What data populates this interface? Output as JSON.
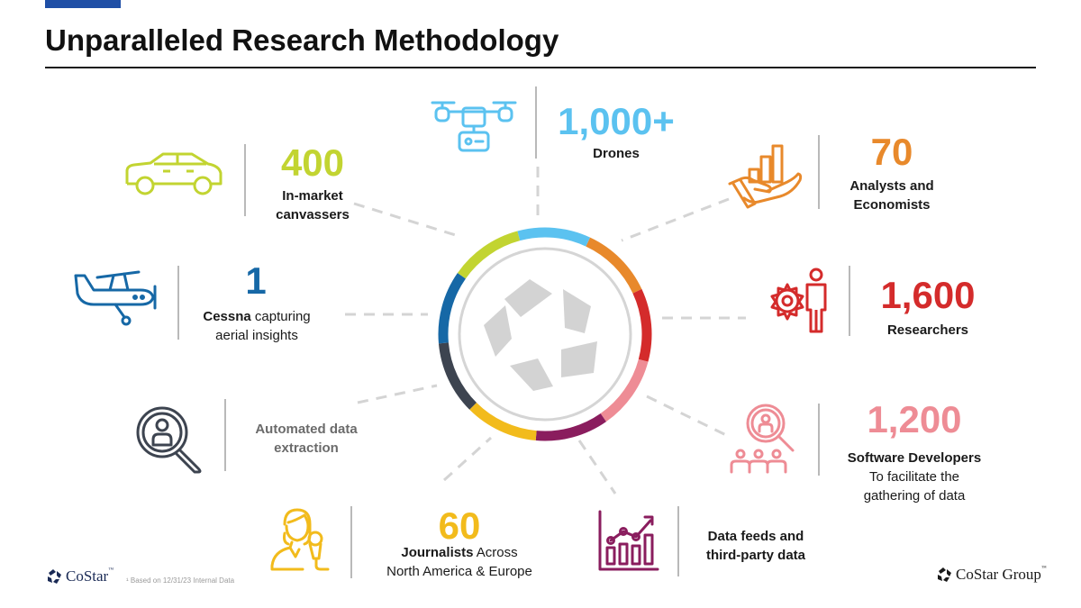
{
  "slide": {
    "title": "Unparalleled Research Methodology",
    "footnote": "¹ Based on 12/31/23 Internal Data",
    "logo_left": "CoStar",
    "logo_left_tm": "™",
    "logo_right": "CoStar Group",
    "logo_right_tm": "™"
  },
  "stats": {
    "drones": {
      "number": "1,000+",
      "label": "Drones",
      "icon": "drone-icon",
      "color": "#5bc2f0"
    },
    "canvassers": {
      "number": "400",
      "label_line1": "In-market",
      "label_line2": "canvassers",
      "icon": "car-icon",
      "color": "#c2d431"
    },
    "analysts": {
      "number": "70",
      "label_line1": "Analysts and",
      "label_line2": "Economists",
      "icon": "hand-chart-icon",
      "color": "#e8892b"
    },
    "cessna": {
      "number": "1",
      "label_bold": "Cessna",
      "label_rest": " capturing",
      "label_line2": "aerial insights",
      "icon": "airplane-icon",
      "color": "#1668a6"
    },
    "researchers": {
      "number": "1,600",
      "label": "Researchers",
      "icon": "person-gear-icon",
      "color": "#d42b2b"
    },
    "automated": {
      "label_line1": "Automated data",
      "label_line2": "extraction",
      "icon": "magnifier-person-icon",
      "color": "#3d4450"
    },
    "developers": {
      "number": "1,200",
      "label_line1": "Software Developers",
      "label_line2": "To facilitate the",
      "label_line3": "gathering of data",
      "icon": "team-search-icon",
      "color": "#ee8c95"
    },
    "journalists": {
      "number": "60",
      "label_bold": "Journalists",
      "label_rest": " Across",
      "label_line2": "North America & Europe",
      "icon": "journalist-icon",
      "color": "#f2bb1c"
    },
    "datafeeds": {
      "label_line1": "Data feeds and",
      "label_line2": "third-party data",
      "icon": "bar-chart-icon",
      "color": "#8a1d5e"
    }
  },
  "ring_colors": [
    "#5bc2f0",
    "#e8892b",
    "#d42b2b",
    "#ee8c95",
    "#8a1d5e",
    "#f2bb1c",
    "#3d4450",
    "#1668a6",
    "#c2d431"
  ],
  "center_logo": {
    "icon": "costar-star-logo-icon",
    "color": "#d3d3d3"
  }
}
